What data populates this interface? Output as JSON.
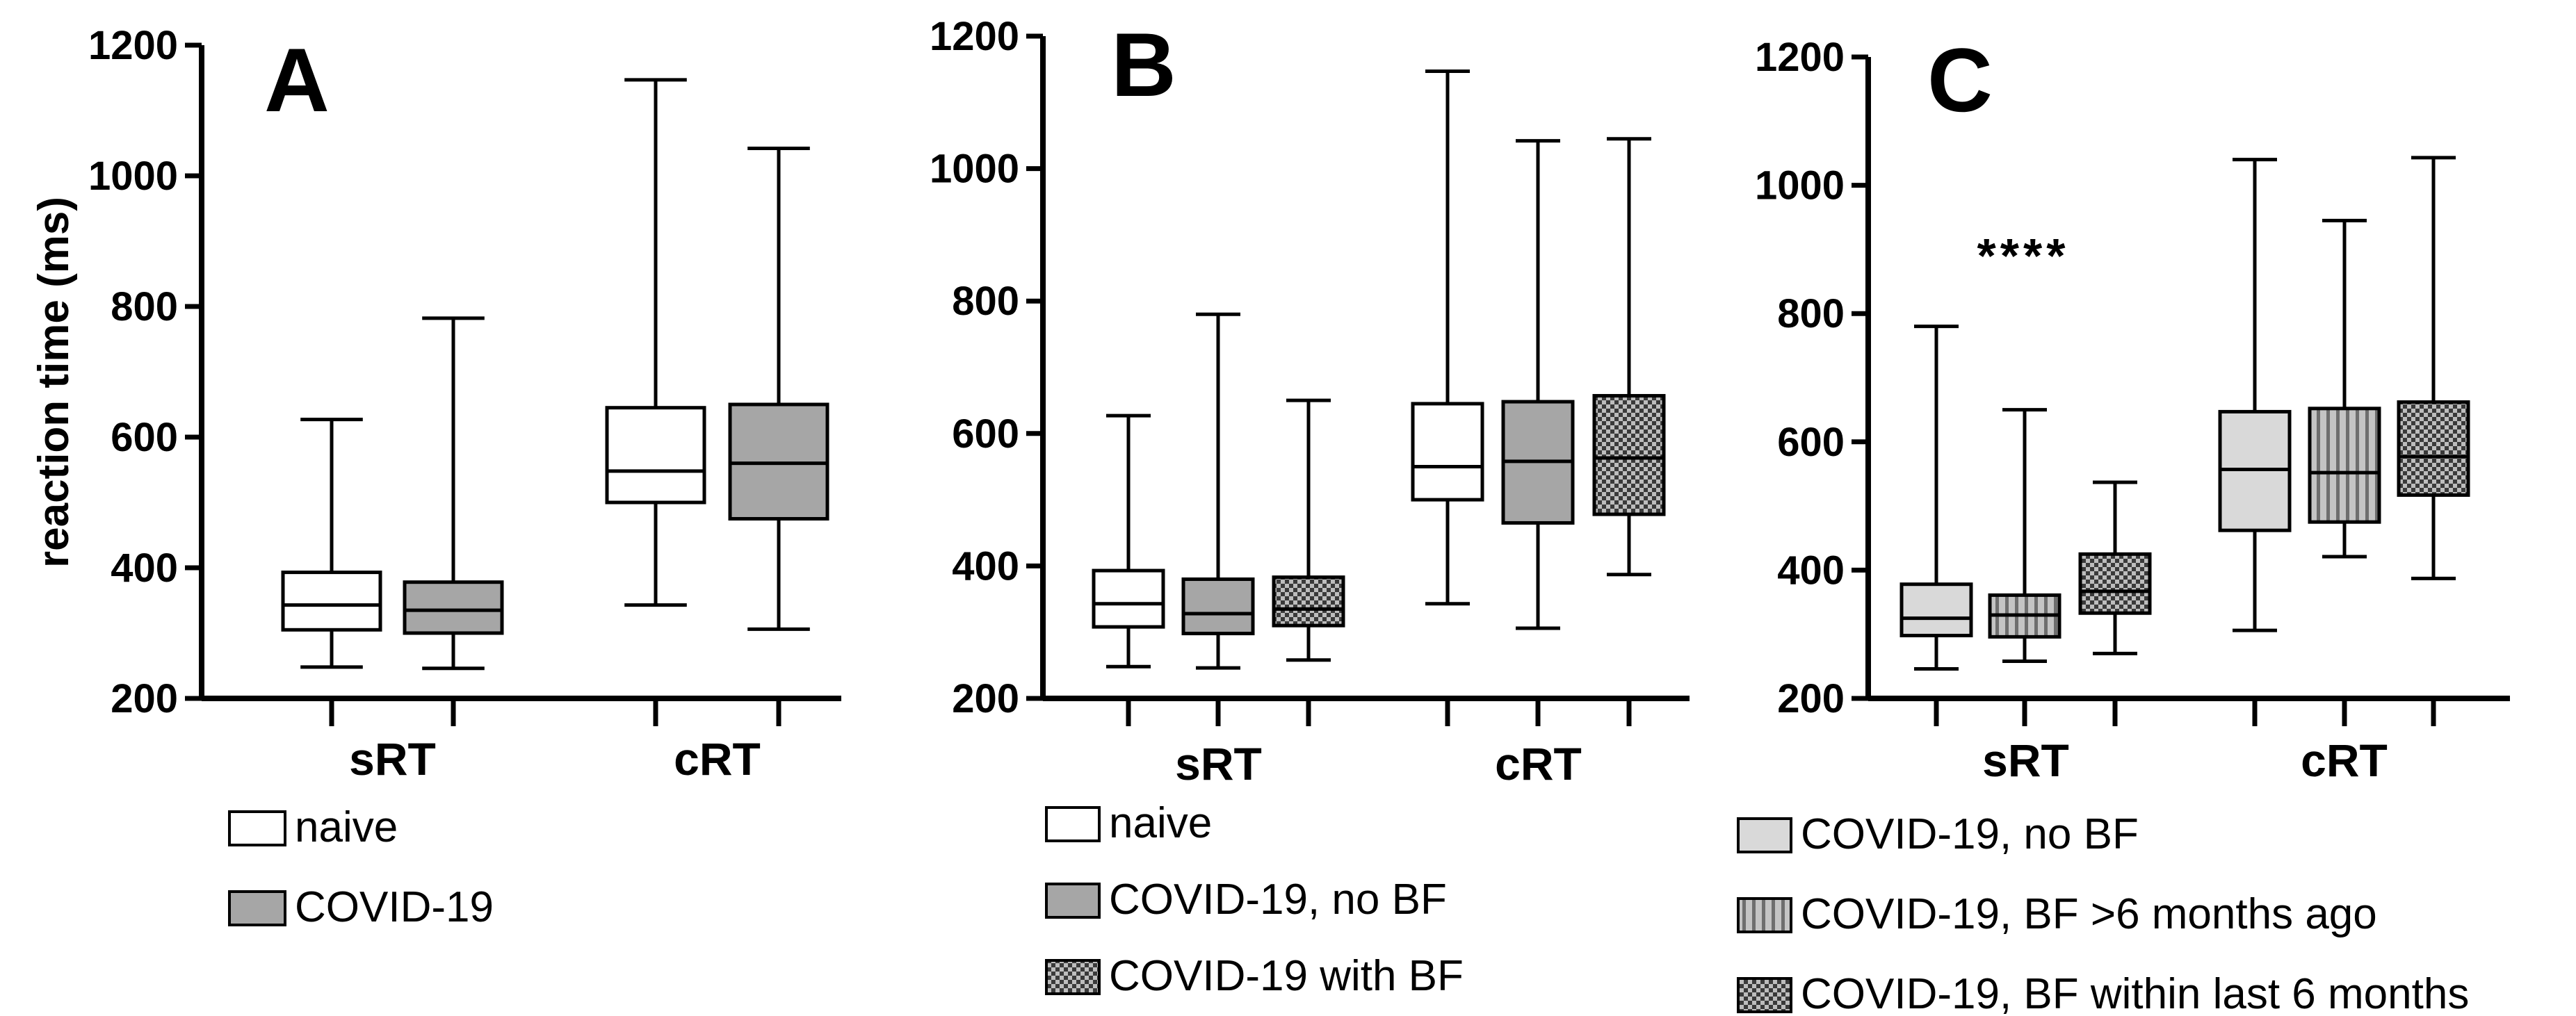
{
  "colors": {
    "naive": "#ffffff",
    "covid": "#a6a6a6",
    "no_bf_light": "#d9d9d9",
    "stroke": "#000000"
  },
  "chart_data": [
    {
      "type": "box",
      "panel_label": "A",
      "ylabel": "reaction time (ms)",
      "ylim": [
        200,
        1200
      ],
      "yticks": [
        200,
        400,
        600,
        800,
        1000,
        1200
      ],
      "categories": [
        "sRT",
        "cRT"
      ],
      "series": [
        {
          "name": "naive",
          "fill": "white",
          "boxes": [
            {
              "category": "sRT",
              "min": 248,
              "q1": 305,
              "median": 343,
              "q3": 393,
              "max": 627
            },
            {
              "category": "cRT",
              "min": 343,
              "q1": 500,
              "median": 548,
              "q3": 645,
              "max": 1147
            }
          ]
        },
        {
          "name": "COVID-19",
          "fill": "grey",
          "boxes": [
            {
              "category": "sRT",
              "min": 246,
              "q1": 300,
              "median": 335,
              "q3": 378,
              "max": 782
            },
            {
              "category": "cRT",
              "min": 306,
              "q1": 475,
              "median": 560,
              "q3": 650,
              "max": 1042
            }
          ]
        }
      ]
    },
    {
      "type": "box",
      "panel_label": "B",
      "ylabel": "",
      "ylim": [
        200,
        1200
      ],
      "yticks": [
        200,
        400,
        600,
        800,
        1000,
        1200
      ],
      "categories": [
        "sRT",
        "cRT"
      ],
      "series": [
        {
          "name": "naive",
          "fill": "white",
          "boxes": [
            {
              "category": "sRT",
              "min": 248,
              "q1": 308,
              "median": 343,
              "q3": 393,
              "max": 627
            },
            {
              "category": "cRT",
              "min": 343,
              "q1": 500,
              "median": 550,
              "q3": 645,
              "max": 1147
            }
          ]
        },
        {
          "name": "COVID-19, no BF",
          "fill": "grey",
          "boxes": [
            {
              "category": "sRT",
              "min": 246,
              "q1": 298,
              "median": 328,
              "q3": 380,
              "max": 780
            },
            {
              "category": "cRT",
              "min": 306,
              "q1": 465,
              "median": 558,
              "q3": 648,
              "max": 1042
            }
          ]
        },
        {
          "name": "COVID-19 with BF",
          "fill": "checker",
          "boxes": [
            {
              "category": "sRT",
              "min": 258,
              "q1": 310,
              "median": 335,
              "q3": 383,
              "max": 650
            },
            {
              "category": "cRT",
              "min": 387,
              "q1": 478,
              "median": 563,
              "q3": 657,
              "max": 1045
            }
          ]
        }
      ]
    },
    {
      "type": "box",
      "panel_label": "C",
      "ylabel": "",
      "ylim": [
        200,
        1200
      ],
      "yticks": [
        200,
        400,
        600,
        800,
        1000,
        1200
      ],
      "categories": [
        "sRT",
        "cRT"
      ],
      "annotation": "****",
      "series": [
        {
          "name": "COVID-19, no BF",
          "fill": "lightgrey",
          "boxes": [
            {
              "category": "sRT",
              "min": 246,
              "q1": 298,
              "median": 325,
              "q3": 378,
              "max": 780
            },
            {
              "category": "cRT",
              "min": 306,
              "q1": 462,
              "median": 557,
              "q3": 647,
              "max": 1040
            }
          ]
        },
        {
          "name": "COVID-19, BF >6 months ago",
          "fill": "stripes",
          "boxes": [
            {
              "category": "sRT",
              "min": 258,
              "q1": 296,
              "median": 330,
              "q3": 361,
              "max": 650
            },
            {
              "category": "cRT",
              "min": 421,
              "q1": 475,
              "median": 552,
              "q3": 652,
              "max": 945
            }
          ]
        },
        {
          "name": "COVID-19, BF within last 6 months",
          "fill": "checker",
          "boxes": [
            {
              "category": "sRT",
              "min": 270,
              "q1": 333,
              "median": 367,
              "q3": 425,
              "max": 537
            },
            {
              "category": "cRT",
              "min": 387,
              "q1": 517,
              "median": 577,
              "q3": 662,
              "max": 1043
            }
          ]
        }
      ]
    }
  ]
}
